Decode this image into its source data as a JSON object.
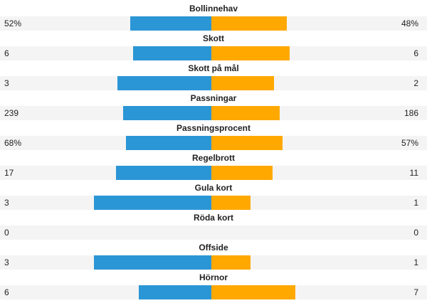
{
  "colors": {
    "home": "#2b96d6",
    "away": "#ffa800",
    "track": "#f4f4f4"
  },
  "stats": [
    {
      "label": "Bollinnehav",
      "home": 52,
      "away": 48,
      "home_text": "52%",
      "away_text": "48%"
    },
    {
      "label": "Skott",
      "home": 6,
      "away": 6,
      "home_text": "6",
      "away_text": "6"
    },
    {
      "label": "Skott på mål",
      "home": 3,
      "away": 2,
      "home_text": "3",
      "away_text": "2"
    },
    {
      "label": "Passningar",
      "home": 239,
      "away": 186,
      "home_text": "239",
      "away_text": "186"
    },
    {
      "label": "Passningsprocent",
      "home": 68,
      "away": 57,
      "home_text": "68%",
      "away_text": "57%"
    },
    {
      "label": "Regelbrott",
      "home": 17,
      "away": 11,
      "home_text": "17",
      "away_text": "11"
    },
    {
      "label": "Gula kort",
      "home": 3,
      "away": 1,
      "home_text": "3",
      "away_text": "1"
    },
    {
      "label": "Röda kort",
      "home": 0,
      "away": 0,
      "home_text": "0",
      "away_text": "0"
    },
    {
      "label": "Offside",
      "home": 3,
      "away": 1,
      "home_text": "3",
      "away_text": "1"
    },
    {
      "label": "Hörnor",
      "home": 6,
      "away": 7,
      "home_text": "6",
      "away_text": "7"
    }
  ],
  "chart_data": {
    "type": "bar",
    "categories": [
      "Bollinnehav",
      "Skott",
      "Skott på mål",
      "Passningar",
      "Passningsprocent",
      "Regelbrott",
      "Gula kort",
      "Röda kort",
      "Offside",
      "Hörnor"
    ],
    "series": [
      {
        "values": [
          52,
          6,
          3,
          239,
          68,
          17,
          3,
          0,
          3,
          6
        ]
      },
      {
        "values": [
          48,
          6,
          2,
          186,
          57,
          11,
          1,
          0,
          1,
          7
        ]
      }
    ]
  }
}
